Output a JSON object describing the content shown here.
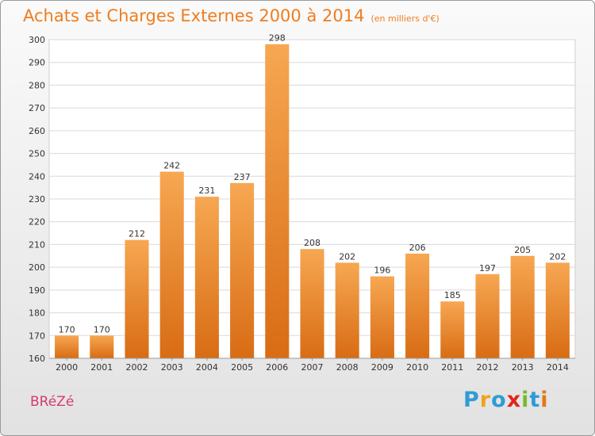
{
  "header": {
    "title": "Achats et Charges Externes 2000 à 2014",
    "unit": "(en milliers d'€)"
  },
  "footer": {
    "commune": "BRéZé",
    "brand": "Proxiti",
    "brand_letters": [
      "P",
      "r",
      "o",
      "x",
      "i",
      "t",
      "i"
    ],
    "brand_colors": [
      "#2f9bd6",
      "#f0a21c",
      "#2f9bd6",
      "#e2261c",
      "#78b92b",
      "#2f9bd6",
      "#e07a1a"
    ]
  },
  "colors": {
    "accent": "#ef7d20",
    "bar_light": "#f7a752",
    "bar_dark": "#d86c14",
    "commune": "#d63c6c"
  },
  "chart_data": {
    "type": "bar",
    "title": "Achats et Charges Externes 2000 à 2014",
    "subtitle": "(en milliers d'€)",
    "categories": [
      "2000",
      "2001",
      "2002",
      "2003",
      "2004",
      "2005",
      "2006",
      "2007",
      "2008",
      "2009",
      "2010",
      "2011",
      "2012",
      "2013",
      "2014"
    ],
    "values": [
      170,
      170,
      212,
      242,
      231,
      237,
      298,
      208,
      202,
      196,
      206,
      185,
      197,
      205,
      202
    ],
    "ylim": [
      160,
      300
    ],
    "yticks": [
      160,
      170,
      180,
      190,
      200,
      210,
      220,
      230,
      240,
      250,
      260,
      270,
      280,
      290,
      300
    ],
    "grid": true,
    "data_labels": true
  }
}
